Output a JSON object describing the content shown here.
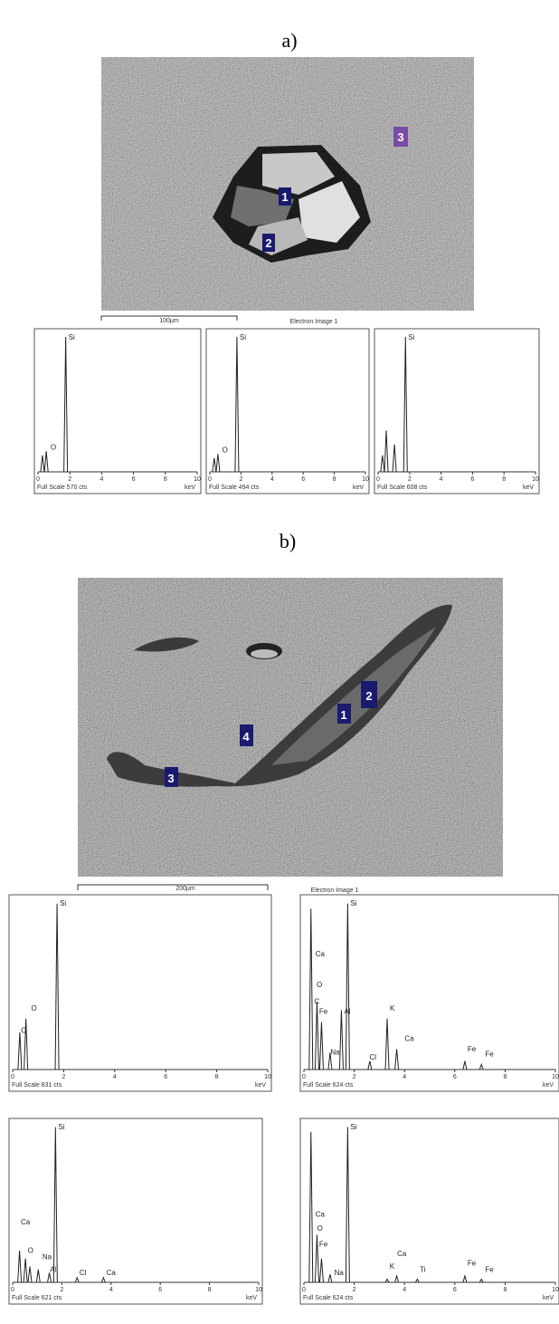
{
  "panels": [
    {
      "label": "a)",
      "image": {
        "scale_bar": "100µm",
        "caption": "Electron Image 1",
        "points": [
          "1",
          "2",
          "3"
        ]
      },
      "spectra": [
        {
          "full_scale": "Full Scale 570 cts",
          "unit": "keV",
          "ticks": [
            "0",
            "2",
            "4",
            "6",
            "8",
            "10"
          ],
          "peaks": [
            "Si",
            "O"
          ]
        },
        {
          "full_scale": "Full Scale 494 cts",
          "unit": "keV",
          "ticks": [
            "0",
            "2",
            "4",
            "6",
            "8",
            "10"
          ],
          "peaks": [
            "Si",
            "O"
          ]
        },
        {
          "full_scale": "Full Scale 608 cts",
          "unit": "keV",
          "ticks": [
            "0",
            "2",
            "4",
            "6",
            "8",
            "10"
          ],
          "peaks": [
            "Si"
          ]
        }
      ]
    },
    {
      "label": "b)",
      "image": {
        "scale_bar": "200µm",
        "caption": "Electron Image 1",
        "points": [
          "1",
          "2",
          "3",
          "4"
        ]
      },
      "spectra": [
        {
          "full_scale": "Full Scale 831 cts",
          "unit": "keV",
          "ticks": [
            "0",
            "2",
            "4",
            "6",
            "8",
            "10"
          ],
          "peaks": [
            "Si",
            "O",
            "C"
          ]
        },
        {
          "full_scale": "Full Scale 624 cts",
          "unit": "keV",
          "ticks": [
            "0",
            "2",
            "4",
            "6",
            "8",
            "10"
          ],
          "peaks": [
            "Si",
            "Ca",
            "O",
            "C",
            "Fe",
            "Al",
            "Na",
            "Cl",
            "K",
            "Ca",
            "Fe",
            "Fe"
          ]
        },
        {
          "full_scale": "Full Scale 621 cts",
          "unit": "keV",
          "ticks": [
            "0",
            "2",
            "4",
            "6",
            "8",
            "10"
          ],
          "peaks": [
            "Si",
            "Ca",
            "O",
            "Na",
            "Al",
            "Cl",
            "Ca"
          ]
        },
        {
          "full_scale": "Full Scale 624 cts",
          "unit": "keV",
          "ticks": [
            "0",
            "2",
            "4",
            "6",
            "8",
            "10"
          ],
          "peaks": [
            "Si",
            "Ca",
            "O",
            "Fe",
            "Na",
            "Ca",
            "K",
            "Ti",
            "Fe",
            "Fe"
          ]
        }
      ]
    }
  ]
}
